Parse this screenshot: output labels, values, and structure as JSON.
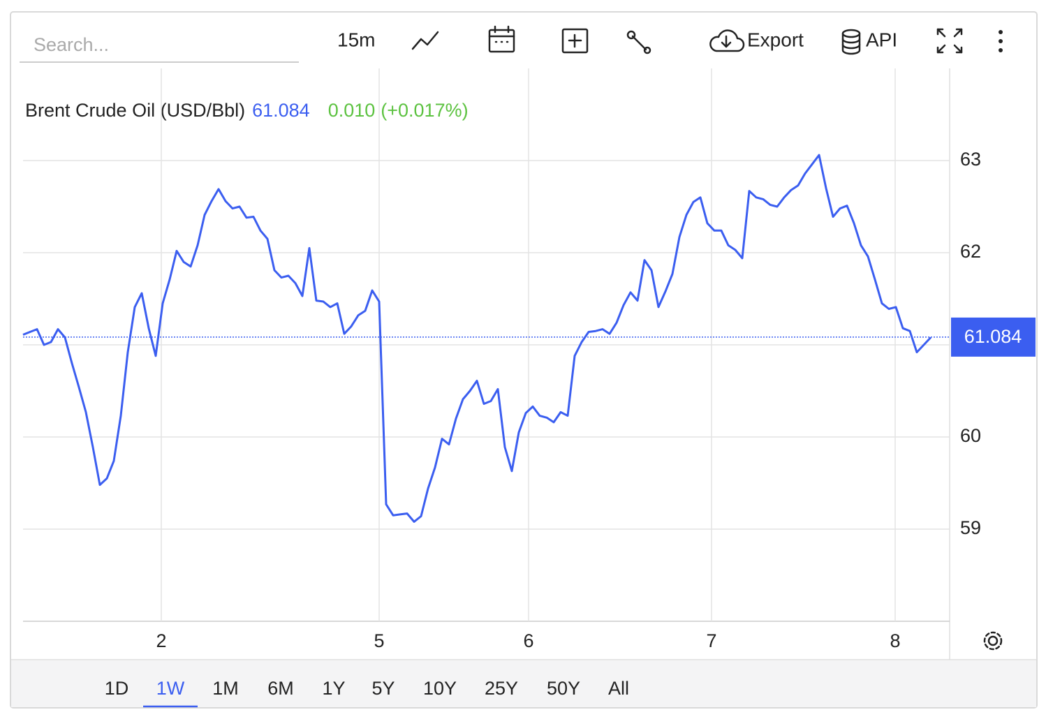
{
  "toolbar": {
    "search_placeholder": "Search...",
    "interval": "15m",
    "export": "Export",
    "api": "API"
  },
  "chart_data": {
    "type": "line",
    "change": "0.010",
    "change_pct": "(+0.017%)",
    "last_value": 61.084,
    "series": [
      {
        "name": "Brent Crude Oil (USD/Bbl)",
        "color": "#3b5ef0",
        "values": [
          61.11,
          61.14,
          61.17,
          61.0,
          61.03,
          61.17,
          61.08,
          60.8,
          60.54,
          60.27,
          59.89,
          59.48,
          59.55,
          59.74,
          60.23,
          60.92,
          61.41,
          61.56,
          61.18,
          60.88,
          61.45,
          61.71,
          62.02,
          61.9,
          61.85,
          62.08,
          62.41,
          62.56,
          62.69,
          62.56,
          62.48,
          62.5,
          62.38,
          62.39,
          62.24,
          62.15,
          61.81,
          61.73,
          61.75,
          61.67,
          61.53,
          62.05,
          61.48,
          61.47,
          61.41,
          61.45,
          61.12,
          61.2,
          61.32,
          61.37,
          61.59,
          61.47,
          59.27,
          59.15,
          59.16,
          59.17,
          59.08,
          59.14,
          59.44,
          59.67,
          59.98,
          59.92,
          60.2,
          60.41,
          60.5,
          60.61,
          60.36,
          60.39,
          60.52,
          59.89,
          59.63,
          60.05,
          60.26,
          60.33,
          60.23,
          60.21,
          60.16,
          60.27,
          60.23,
          60.88,
          61.03,
          61.14,
          61.15,
          61.17,
          61.12,
          61.24,
          61.43,
          61.57,
          61.48,
          61.92,
          61.81,
          61.41,
          61.58,
          61.77,
          62.17,
          62.41,
          62.55,
          62.6,
          62.32,
          62.24,
          62.24,
          62.08,
          62.03,
          61.94,
          62.67,
          62.6,
          62.58,
          62.52,
          62.5,
          62.6,
          62.68,
          62.73,
          62.86,
          62.96,
          63.06,
          62.7,
          62.39,
          62.48,
          62.51,
          62.32,
          62.08,
          61.96,
          61.71,
          61.45,
          61.39,
          61.41,
          61.18,
          61.15,
          60.92,
          61.0,
          61.08
        ]
      }
    ],
    "xlim": [
      0,
      132.7
    ],
    "xticks": [
      {
        "value": 19.8,
        "label": "2"
      },
      {
        "value": 51,
        "label": "5"
      },
      {
        "value": 72.4,
        "label": "6"
      },
      {
        "value": 98.6,
        "label": "7"
      },
      {
        "value": 124.9,
        "label": "8"
      }
    ],
    "ylim": [
      58,
      64
    ],
    "yticks": [
      59,
      60,
      61,
      62,
      63
    ],
    "grid": true
  },
  "range_buttons": {
    "options": [
      "1D",
      "1W",
      "1M",
      "6M",
      "1Y",
      "5Y",
      "10Y",
      "25Y",
      "50Y",
      "All"
    ],
    "active": 1
  }
}
